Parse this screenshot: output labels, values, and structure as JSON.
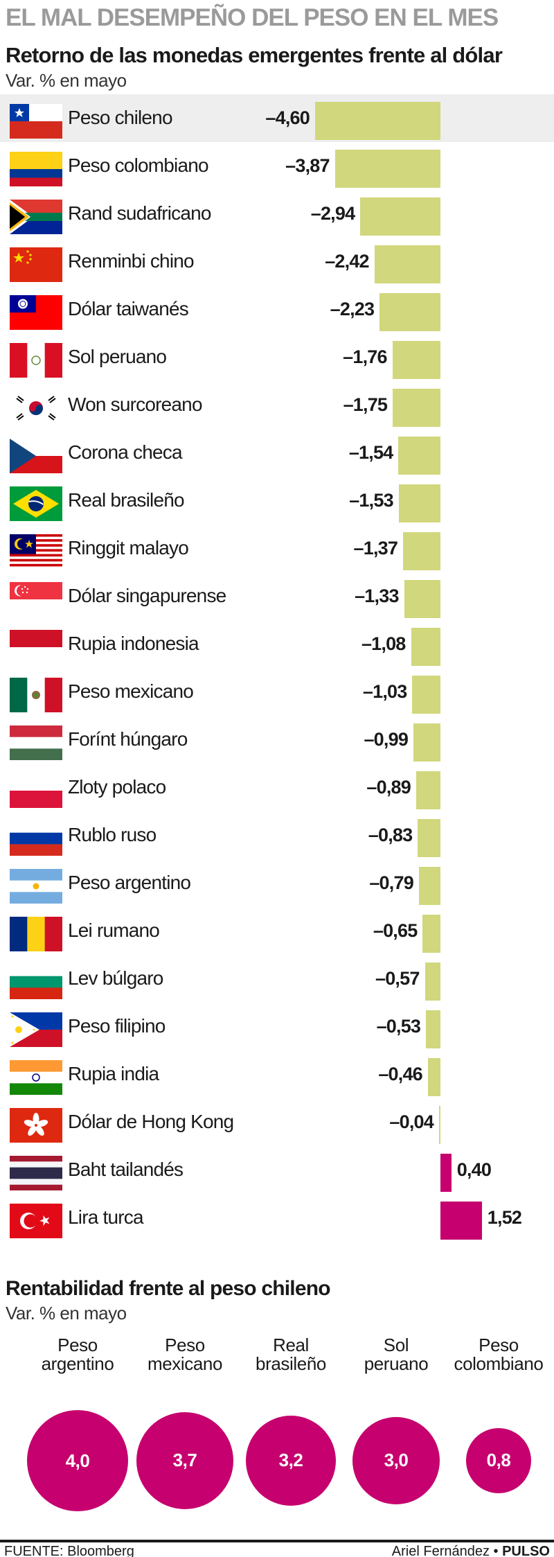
{
  "header": {
    "title": "EL MAL DESEMPEÑO DEL PESO EN EL MES",
    "subtitle": "Retorno de las monedas emergentes frente al dólar",
    "unit": "Var. % en mayo"
  },
  "colors": {
    "negative_bar": "#d1d77c",
    "positive_bar": "#c6006e",
    "highlight_row": "#eeeeee",
    "bubble": "#c6006e"
  },
  "chart_data": [
    {
      "type": "bar",
      "orientation": "horizontal",
      "title": "Retorno de las monedas emergentes frente al dólar",
      "ylabel": "Var. % en mayo",
      "categories": [
        "Peso chileno",
        "Peso colombiano",
        "Rand sudafricano",
        "Renminbi chino",
        "Dólar taiwanés",
        "Sol peruano",
        "Won surcoreano",
        "Corona checa",
        "Real brasileño",
        "Ringgit malayo",
        "Dólar singapurense",
        "Rupia indonesia",
        "Peso mexicano",
        "Forínt húngaro",
        "Zloty polaco",
        "Rublo ruso",
        "Peso argentino",
        "Lei rumano",
        "Lev búlgaro",
        "Peso filipino",
        "Rupia india",
        "Dólar de Hong Kong",
        "Baht tailandés",
        "Lira turca"
      ],
      "values": [
        -4.6,
        -3.87,
        -2.94,
        -2.42,
        -2.23,
        -1.76,
        -1.75,
        -1.54,
        -1.53,
        -1.37,
        -1.33,
        -1.08,
        -1.03,
        -0.99,
        -0.89,
        -0.83,
        -0.79,
        -0.65,
        -0.57,
        -0.53,
        -0.46,
        -0.04,
        0.4,
        1.52
      ],
      "labels": [
        "–4,60",
        "–3,87",
        "–2,94",
        "–2,42",
        "–2,23",
        "–1,76",
        "–1,75",
        "–1,54",
        "–1,53",
        "–1,37",
        "–1,33",
        "–1,08",
        "–1,03",
        "–0,99",
        "–0,89",
        "–0,83",
        "–0,79",
        "–0,65",
        "–0,57",
        "–0,53",
        "–0,46",
        "–0,04",
        "0,40",
        "1,52"
      ],
      "flags": [
        "chile-flag",
        "colombia-flag",
        "south-africa-flag",
        "china-flag",
        "taiwan-flag",
        "peru-flag",
        "south-korea-flag",
        "czech-flag",
        "brazil-flag",
        "malaysia-flag",
        "singapore-flag",
        "indonesia-flag",
        "mexico-flag",
        "hungary-flag",
        "poland-flag",
        "russia-flag",
        "argentina-flag",
        "romania-flag",
        "bulgaria-flag",
        "philippines-flag",
        "india-flag",
        "hong-kong-flag",
        "thailand-flag",
        "turkey-flag"
      ],
      "highlighted": "Peso chileno"
    },
    {
      "type": "bubble",
      "title": "Rentabilidad frente al peso chileno",
      "ylabel": "Var. % en mayo",
      "categories": [
        "Peso argentino",
        "Peso mexicano",
        "Real brasileño",
        "Sol peruano",
        "Peso colombiano"
      ],
      "category_lines": [
        [
          "Peso",
          "argentino"
        ],
        [
          "Peso",
          "mexicano"
        ],
        [
          "Real",
          "brasileño"
        ],
        [
          "Sol",
          "peruano"
        ],
        [
          "Peso",
          "colombiano"
        ]
      ],
      "values": [
        4.0,
        3.7,
        3.2,
        3.0,
        0.8
      ],
      "labels": [
        "4,0",
        "3,7",
        "3,2",
        "3,0",
        "0,8"
      ]
    }
  ],
  "section2": {
    "title": "Rentabilidad frente al peso chileno",
    "unit": "Var. % en mayo"
  },
  "footer": {
    "source": "FUENTE: Bloomberg",
    "author": "Ariel Fernández",
    "separator": " • ",
    "outlet": "PULSO"
  }
}
